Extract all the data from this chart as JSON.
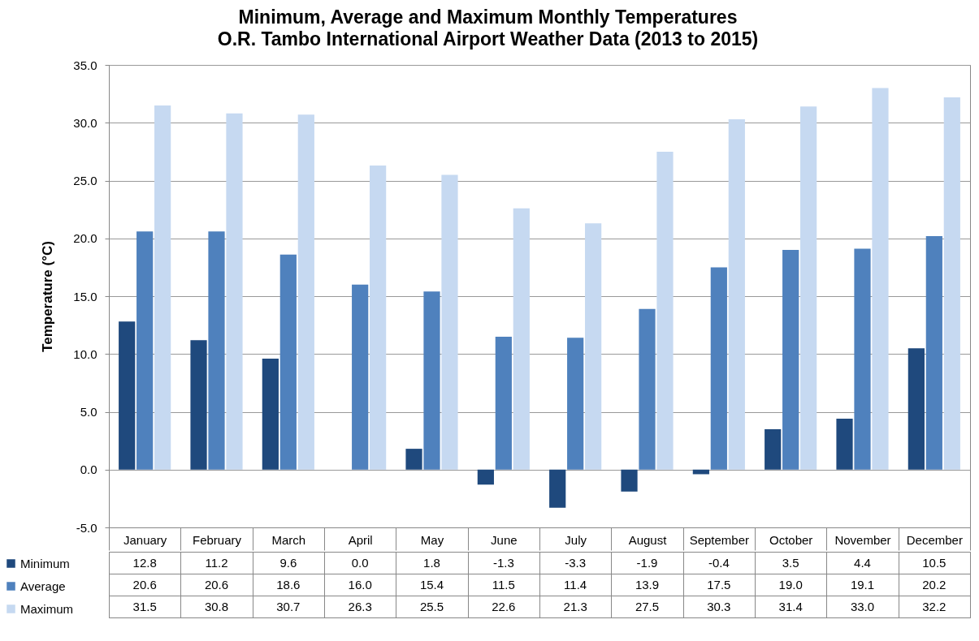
{
  "chart_data": {
    "type": "bar",
    "title": "Minimum, Average and Maximum Monthly Temperatures",
    "subtitle": "O.R. Tambo International Airport Weather Data (2013 to 2015)",
    "ylabel": "Temperature (°C)",
    "categories": [
      "January",
      "February",
      "March",
      "April",
      "May",
      "June",
      "July",
      "August",
      "September",
      "October",
      "November",
      "December"
    ],
    "ylim": [
      -5,
      35
    ],
    "yticks": [
      {
        "value": -5,
        "label": "-5.0"
      },
      {
        "value": 0,
        "label": "0.0"
      },
      {
        "value": 5,
        "label": "5.0"
      },
      {
        "value": 10,
        "label": "10.0"
      },
      {
        "value": 15,
        "label": "15.0"
      },
      {
        "value": 20,
        "label": "20.0"
      },
      {
        "value": 25,
        "label": "25.0"
      },
      {
        "value": 30,
        "label": "30.0"
      },
      {
        "value": 35,
        "label": "35.0"
      }
    ],
    "grid": "y",
    "legend": "bottom left",
    "series": [
      {
        "name": "Minimum",
        "color": "#1f497d",
        "values": [
          12.8,
          11.2,
          9.6,
          0.0,
          1.8,
          -1.3,
          -3.3,
          -1.9,
          -0.4,
          3.5,
          4.4,
          10.5
        ],
        "value_labels": [
          "12.8",
          "11.2",
          "9.6",
          "0.0",
          "1.8",
          "-1.3",
          "-3.3",
          "-1.9",
          "-0.4",
          "3.5",
          "4.4",
          "10.5"
        ]
      },
      {
        "name": "Average",
        "color": "#4f81bd",
        "values": [
          20.6,
          20.6,
          18.6,
          16.0,
          15.4,
          11.5,
          11.4,
          13.9,
          17.5,
          19.0,
          19.1,
          20.2
        ],
        "value_labels": [
          "20.6",
          "20.6",
          "18.6",
          "16.0",
          "15.4",
          "11.5",
          "11.4",
          "13.9",
          "17.5",
          "19.0",
          "19.1",
          "20.2"
        ]
      },
      {
        "name": "Maximum",
        "color": "#c6d9f1",
        "values": [
          31.5,
          30.8,
          30.7,
          26.3,
          25.5,
          22.6,
          21.3,
          27.5,
          30.3,
          31.4,
          33.0,
          32.2
        ],
        "value_labels": [
          "31.5",
          "30.8",
          "30.7",
          "26.3",
          "25.5",
          "22.6",
          "21.3",
          "27.5",
          "30.3",
          "31.4",
          "33.0",
          "32.2"
        ]
      }
    ]
  }
}
